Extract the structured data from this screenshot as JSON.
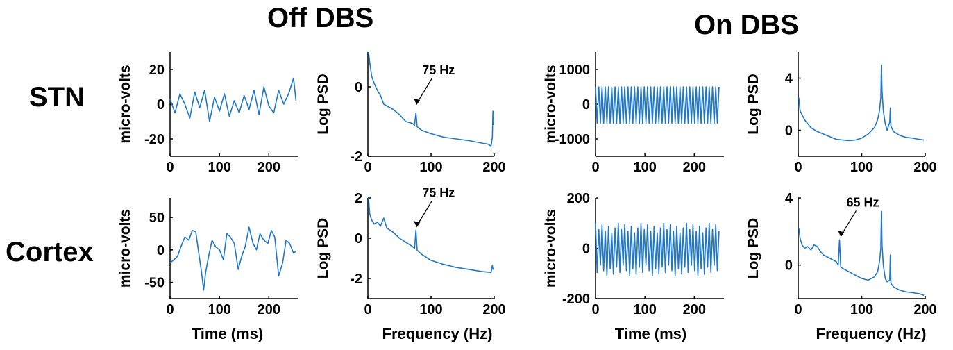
{
  "group_titles": {
    "off": "Off DBS",
    "on": "On DBS"
  },
  "row_labels": {
    "stn": "STN",
    "cortex": "Cortex"
  },
  "bottom_labels": {
    "time": "Time (ms)",
    "freq": "Frequency (Hz)"
  },
  "colors": {
    "trace": "#1f78c8",
    "axis": "#000000"
  },
  "chart_data": [
    {
      "id": "off-stn-time",
      "type": "line",
      "ylabel": "micro-volts",
      "xlim": [
        0,
        260
      ],
      "ylim": [
        -30,
        30
      ],
      "xticks": [
        0,
        100,
        200
      ],
      "xtick_labels": [
        "0",
        "100",
        "200"
      ],
      "yticks": [
        -20,
        0,
        20
      ],
      "ytick_labels": [
        "-20",
        "0",
        "20"
      ],
      "series": [
        {
          "x": [
            0,
            10,
            20,
            30,
            40,
            50,
            60,
            70,
            80,
            90,
            100,
            110,
            120,
            130,
            140,
            150,
            160,
            170,
            180,
            190,
            200,
            210,
            220,
            230,
            240,
            250,
            255
          ],
          "y": [
            3,
            -5,
            6,
            0,
            -8,
            7,
            -2,
            8,
            -10,
            4,
            -4,
            6,
            -7,
            2,
            -5,
            5,
            -3,
            8,
            -6,
            10,
            -1,
            -5,
            8,
            0,
            6,
            15,
            2
          ]
        }
      ]
    },
    {
      "id": "off-stn-psd",
      "type": "line",
      "ylabel": "Log PSD",
      "xlim": [
        0,
        200
      ],
      "ylim": [
        -2,
        1
      ],
      "xticks": [
        0,
        100,
        200
      ],
      "xtick_labels": [
        "0",
        "100",
        "200"
      ],
      "yticks": [
        -2,
        0
      ],
      "ytick_labels": [
        "-2",
        "0"
      ],
      "annotations": [
        {
          "text": "75 Hz",
          "x": 75,
          "y": -0.6
        }
      ],
      "series": [
        {
          "x": [
            1,
            3,
            6,
            10,
            15,
            20,
            25,
            30,
            40,
            50,
            60,
            70,
            74,
            76,
            78,
            85,
            100,
            120,
            140,
            160,
            180,
            190,
            195,
            197,
            198,
            199
          ],
          "y": [
            1.0,
            0.7,
            0.3,
            0.1,
            -0.1,
            -0.25,
            -0.5,
            -0.55,
            -0.65,
            -0.8,
            -1.0,
            -1.05,
            -1.1,
            -0.75,
            -1.15,
            -1.25,
            -1.35,
            -1.45,
            -1.5,
            -1.55,
            -1.62,
            -1.65,
            -1.7,
            -1.45,
            -0.7,
            -1.1
          ]
        }
      ]
    },
    {
      "id": "on-stn-time",
      "type": "line",
      "ylabel": "micro-volts",
      "xlim": [
        0,
        260
      ],
      "ylim": [
        -1500,
        1500
      ],
      "xticks": [
        0,
        100,
        200
      ],
      "xtick_labels": [
        "0",
        "100",
        "200"
      ],
      "yticks": [
        -1000,
        0,
        1000
      ],
      "ytick_labels": [
        "-1000",
        "0",
        "1000"
      ],
      "series": [
        {
          "x": [
            0,
            250
          ],
          "y": [
            -550,
            500
          ]
        }
      ]
    },
    {
      "id": "on-stn-psd",
      "type": "line",
      "ylabel": "Log PSD",
      "xlim": [
        0,
        200
      ],
      "ylim": [
        -2,
        6
      ],
      "xticks": [
        0,
        100,
        200
      ],
      "xtick_labels": [
        "0",
        "100",
        "200"
      ],
      "yticks": [
        0,
        4
      ],
      "ytick_labels": [
        "0",
        "4"
      ],
      "series": [
        {
          "x": [
            1,
            3,
            6,
            10,
            20,
            30,
            40,
            50,
            60,
            70,
            80,
            90,
            100,
            110,
            120,
            125,
            128,
            130,
            131,
            132,
            134,
            137,
            140,
            144,
            145,
            146,
            150,
            160,
            170,
            180,
            190,
            198
          ],
          "y": [
            2.5,
            1.5,
            1.2,
            0.8,
            0.2,
            -0.1,
            -0.3,
            -0.5,
            -0.7,
            -0.75,
            -0.8,
            -0.75,
            -0.6,
            -0.3,
            0.2,
            0.8,
            1.5,
            2.5,
            5.0,
            3.0,
            1.5,
            0.5,
            0.0,
            0.6,
            1.7,
            0.3,
            -0.1,
            -0.4,
            -0.55,
            -0.6,
            -0.7,
            -0.75
          ]
        }
      ]
    },
    {
      "id": "off-cortex-time",
      "type": "line",
      "ylabel": "micro-volts",
      "xlim": [
        0,
        260
      ],
      "ylim": [
        -75,
        80
      ],
      "xticks": [
        0,
        100,
        200
      ],
      "xtick_labels": [
        "0",
        "100",
        "200"
      ],
      "yticks": [
        -50,
        0,
        50
      ],
      "ytick_labels": [
        "-50",
        "0",
        "50"
      ],
      "series": [
        {
          "x": [
            0,
            8,
            15,
            22,
            30,
            38,
            45,
            52,
            58,
            63,
            68,
            72,
            78,
            85,
            92,
            100,
            108,
            115,
            122,
            130,
            138,
            145,
            152,
            160,
            168,
            175,
            182,
            190,
            198,
            205,
            212,
            220,
            228,
            235,
            242,
            250,
            255
          ],
          "y": [
            -20,
            -15,
            -10,
            5,
            20,
            15,
            30,
            28,
            -5,
            -30,
            -62,
            -35,
            -10,
            15,
            5,
            0,
            -15,
            25,
            20,
            10,
            -30,
            -10,
            5,
            35,
            10,
            0,
            25,
            15,
            10,
            30,
            20,
            -40,
            -20,
            15,
            10,
            -5,
            -2
          ]
        }
      ]
    },
    {
      "id": "off-cortex-psd",
      "type": "line",
      "ylabel": "Log PSD",
      "xlim": [
        0,
        200
      ],
      "ylim": [
        -3,
        2
      ],
      "xticks": [
        0,
        100,
        200
      ],
      "xtick_labels": [
        "0",
        "100",
        "200"
      ],
      "yticks": [
        -2,
        0,
        2
      ],
      "ytick_labels": [
        "-2",
        "0",
        "2"
      ],
      "annotations": [
        {
          "text": "75 Hz",
          "x": 75,
          "y": 0.4
        }
      ],
      "series": [
        {
          "x": [
            1,
            3,
            6,
            10,
            15,
            20,
            25,
            30,
            35,
            40,
            50,
            60,
            70,
            74,
            76,
            78,
            85,
            100,
            120,
            140,
            160,
            180,
            195,
            197,
            198,
            199
          ],
          "y": [
            2.0,
            1.2,
            0.9,
            0.7,
            0.8,
            0.6,
            1.0,
            0.5,
            0.4,
            0.3,
            0.0,
            -0.2,
            -0.4,
            -0.5,
            0.4,
            -0.6,
            -0.8,
            -1.1,
            -1.3,
            -1.45,
            -1.55,
            -1.65,
            -1.7,
            -1.35,
            -1.55,
            -1.5
          ]
        }
      ]
    },
    {
      "id": "on-cortex-time",
      "type": "line",
      "ylabel": "micro-volts",
      "xlim": [
        0,
        260
      ],
      "ylim": [
        -200,
        200
      ],
      "xticks": [
        0,
        100,
        200
      ],
      "xtick_labels": [
        "0",
        "100",
        "200"
      ],
      "yticks": [
        -200,
        0,
        200
      ],
      "ytick_labels": [
        "-200",
        "0",
        "200"
      ],
      "series": [
        {
          "x": [
            0,
            250
          ],
          "y": [
            -110,
            100
          ]
        }
      ]
    },
    {
      "id": "on-cortex-psd",
      "type": "line",
      "ylabel": "Log PSD",
      "xlim": [
        0,
        200
      ],
      "ylim": [
        -2,
        4
      ],
      "xticks": [
        0,
        100,
        200
      ],
      "xtick_labels": [
        "0",
        "100",
        "200"
      ],
      "yticks": [
        0,
        4
      ],
      "ytick_labels": [
        "0",
        "4"
      ],
      "annotations": [
        {
          "text": "65 Hz",
          "x": 65,
          "y": 1.5
        }
      ],
      "series": [
        {
          "x": [
            1,
            3,
            6,
            10,
            15,
            20,
            25,
            30,
            35,
            40,
            50,
            60,
            63,
            65,
            67,
            70,
            80,
            90,
            100,
            110,
            120,
            125,
            128,
            130,
            131,
            132,
            134,
            137,
            140,
            144,
            145,
            146,
            150,
            160,
            170,
            180,
            190,
            198
          ],
          "y": [
            2.2,
            1.6,
            1.2,
            1.0,
            1.1,
            0.9,
            1.2,
            1.1,
            0.8,
            0.6,
            0.4,
            0.2,
            0.0,
            1.5,
            -0.1,
            -0.2,
            -0.4,
            -0.6,
            -0.8,
            -0.9,
            -0.7,
            -0.4,
            0.2,
            1.0,
            3.2,
            1.2,
            0.0,
            -0.8,
            -1.0,
            -0.9,
            0.6,
            -1.1,
            -1.3,
            -1.5,
            -1.6,
            -1.65,
            -1.7,
            -1.8
          ]
        }
      ]
    }
  ]
}
